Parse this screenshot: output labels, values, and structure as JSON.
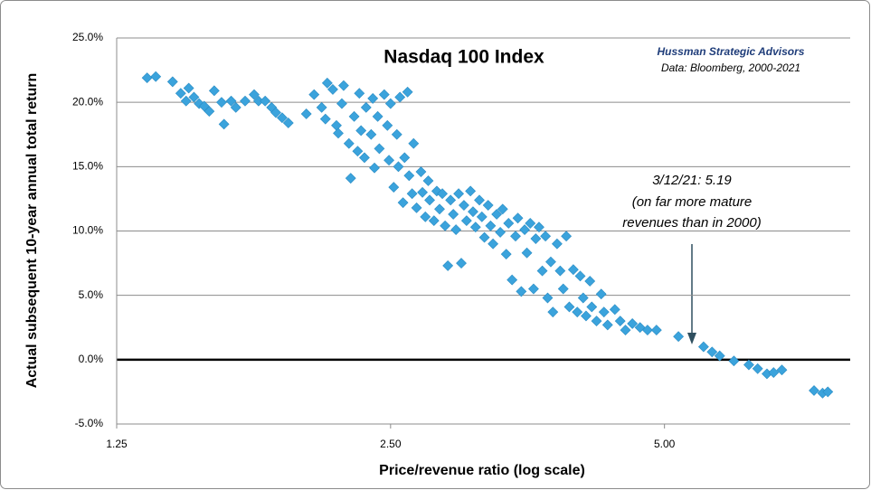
{
  "chart_data": {
    "type": "scatter",
    "title": "Nasdaq 100 Index",
    "source": [
      "Hussman Strategic Advisors",
      "Data: Bloomberg, 2000-2021"
    ],
    "annotation": [
      "3/12/21: 5.19",
      "(on far more mature",
      "revenues than in 2000)"
    ],
    "xlabel": "Price/revenue ratio (log scale)",
    "ylabel": "Actual subsequent  10-year annual total return",
    "xscale": "log",
    "grid": true,
    "color": "#3ba3dc",
    "xlim": [
      1.25,
      8
    ],
    "ylim": [
      -5,
      25
    ],
    "xticks": [
      1.25,
      {
        "value": 2.5,
        "label": "2.50"
      },
      {
        "value": 5,
        "label": "5.00"
      }
    ],
    "yticks": [
      {
        "value": -5,
        "label": "-5.0%"
      },
      {
        "value": 0,
        "label": "0.0%"
      },
      {
        "value": 5,
        "label": "5.0%"
      },
      {
        "value": 10,
        "label": "10.0%"
      },
      {
        "value": 15,
        "label": "15.0%"
      },
      {
        "value": 20,
        "label": "20.0%"
      },
      {
        "value": 25,
        "label": "25.0%"
      }
    ],
    "x": [
      1.35,
      1.38,
      1.44,
      1.47,
      1.49,
      1.5,
      1.52,
      1.54,
      1.56,
      1.58,
      1.6,
      1.63,
      1.64,
      1.67,
      1.69,
      1.73,
      1.77,
      1.79,
      1.82,
      1.85,
      1.87,
      1.9,
      1.93,
      2.02,
      2.06,
      2.1,
      2.12,
      2.13,
      2.16,
      2.18,
      2.19,
      2.21,
      2.22,
      2.25,
      2.26,
      2.28,
      2.3,
      2.31,
      2.32,
      2.34,
      2.35,
      2.38,
      2.39,
      2.4,
      2.42,
      2.43,
      2.46,
      2.48,
      2.49,
      2.5,
      2.52,
      2.54,
      2.55,
      2.56,
      2.58,
      2.59,
      2.61,
      2.62,
      2.64,
      2.65,
      2.67,
      2.7,
      2.71,
      2.73,
      2.75,
      2.76,
      2.79,
      2.81,
      2.83,
      2.85,
      2.87,
      2.89,
      2.91,
      2.93,
      2.95,
      2.97,
      2.99,
      3.01,
      3.03,
      3.06,
      3.08,
      3.1,
      3.13,
      3.15,
      3.17,
      3.2,
      3.22,
      3.24,
      3.27,
      3.3,
      3.32,
      3.35,
      3.37,
      3.4,
      3.43,
      3.45,
      3.48,
      3.51,
      3.53,
      3.56,
      3.59,
      3.61,
      3.64,
      3.67,
      3.7,
      3.72,
      3.75,
      3.77,
      3.81,
      3.84,
      3.87,
      3.9,
      3.93,
      3.97,
      4.01,
      4.04,
      4.07,
      4.1,
      4.14,
      4.16,
      4.21,
      4.26,
      4.29,
      4.33,
      4.41,
      4.47,
      4.53,
      4.61,
      4.7,
      4.79,
      4.9,
      5.18,
      5.52,
      5.64,
      5.75,
      5.96,
      6.19,
      6.33,
      6.48,
      6.59,
      6.73,
      7.3,
      7.46,
      7.56
    ],
    "y": [
      21.9,
      22.0,
      21.6,
      20.7,
      20.1,
      21.1,
      20.4,
      19.9,
      19.7,
      19.3,
      20.9,
      20.0,
      18.3,
      20.1,
      19.6,
      20.1,
      20.6,
      20.1,
      20.1,
      19.6,
      19.2,
      18.8,
      18.4,
      19.1,
      20.6,
      19.6,
      18.7,
      21.5,
      21.0,
      18.2,
      17.6,
      19.9,
      21.3,
      16.8,
      14.1,
      18.9,
      16.2,
      20.7,
      17.8,
      15.7,
      19.6,
      17.5,
      20.3,
      14.9,
      18.9,
      16.4,
      20.6,
      18.2,
      15.5,
      19.9,
      13.4,
      17.5,
      15.0,
      20.4,
      12.2,
      15.7,
      20.8,
      14.3,
      12.9,
      16.8,
      11.8,
      14.6,
      13.0,
      11.1,
      13.9,
      12.4,
      10.8,
      13.1,
      11.7,
      12.9,
      10.4,
      7.3,
      12.4,
      11.3,
      10.1,
      12.9,
      7.5,
      12.0,
      10.8,
      13.1,
      11.5,
      10.3,
      12.4,
      11.1,
      9.5,
      12.0,
      10.4,
      9.0,
      11.3,
      9.9,
      11.7,
      8.2,
      10.6,
      6.2,
      9.6,
      11.0,
      5.3,
      10.1,
      8.3,
      10.6,
      5.5,
      9.4,
      10.3,
      6.9,
      9.6,
      4.8,
      7.6,
      3.7,
      9.0,
      6.9,
      5.5,
      9.6,
      4.1,
      7.0,
      3.7,
      6.5,
      4.8,
      3.4,
      6.1,
      4.1,
      3.0,
      5.1,
      3.7,
      2.7,
      3.9,
      3.0,
      2.3,
      2.8,
      2.5,
      2.3,
      2.3,
      1.8,
      1.0,
      0.6,
      0.3,
      -0.1,
      -0.4,
      -0.7,
      -1.1,
      -1.0,
      -0.8,
      -2.4,
      -2.6,
      -2.5
    ]
  }
}
